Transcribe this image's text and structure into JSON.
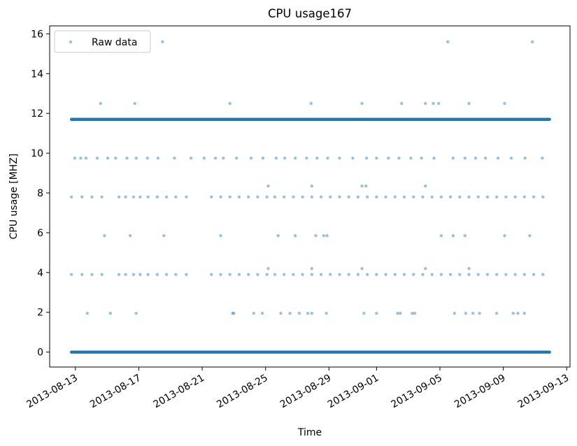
{
  "chart_data": {
    "type": "scatter",
    "title": "CPU usage167",
    "xlabel": "Time",
    "ylabel": "CPU usage [MHZ]",
    "x_axis": {
      "kind": "date",
      "range": [
        "2013-08-11T09:00",
        "2013-09-13T05:00"
      ],
      "ticks": [
        "2013-08-13",
        "2013-08-17",
        "2013-08-21",
        "2013-08-25",
        "2013-08-29",
        "2013-09-01",
        "2013-09-05",
        "2013-09-09",
        "2013-09-13"
      ],
      "tick_label_rotation_deg": 30
    },
    "ylim": [
      -0.75,
      16.4
    ],
    "y_ticks": [
      0,
      2,
      4,
      6,
      8,
      10,
      12,
      14,
      16
    ],
    "grid": false,
    "legend": {
      "placement": "top-left",
      "entries": [
        "Raw data"
      ]
    },
    "series": [
      {
        "name": "Raw data",
        "color": "#1f77b4",
        "marker": "circle",
        "dense_runs": [
          {
            "start": "2013-08-12T18:00",
            "end": "2013-09-11T22:00",
            "y": 0
          },
          {
            "start": "2013-08-12T18:00",
            "end": "2013-09-11T22:00",
            "y": 11.7
          }
        ],
        "sparse_levels": [
          {
            "y": 15.6,
            "dates": [
              "2013-08-18T12:00",
              "2013-09-05T12:00",
              "2013-09-10T20:00"
            ]
          },
          {
            "y": 12.5,
            "dates": [
              "2013-08-14T14:00",
              "2013-08-16T18:00",
              "2013-08-22T18:00",
              "2013-08-27T21:00",
              "2013-08-31T02:00",
              "2013-09-02T14:00",
              "2013-09-04T02:00",
              "2013-09-04T14:00",
              "2013-09-04T22:00",
              "2013-09-06T20:00",
              "2013-09-09T02:00"
            ]
          },
          {
            "y": 9.75,
            "dates": [
              "2013-08-12T23:00",
              "2013-08-13T08:00",
              "2013-08-13T16:00",
              "2013-08-14T09:00",
              "2013-08-15T01:00",
              "2013-08-15T13:00",
              "2013-08-16T06:00",
              "2013-08-16T20:00",
              "2013-08-17T13:00",
              "2013-08-18T05:00",
              "2013-08-19T06:00",
              "2013-08-20T07:00",
              "2013-08-21T03:00",
              "2013-08-21T20:00",
              "2013-08-22T08:00",
              "2013-08-23T04:00",
              "2013-08-24T02:00",
              "2013-08-24T20:00",
              "2013-08-25T16:00",
              "2013-08-26T05:00",
              "2013-08-26T21:00",
              "2013-08-27T14:00",
              "2013-08-28T06:00",
              "2013-08-28T22:00",
              "2013-08-29T16:00",
              "2013-08-30T12:00",
              "2013-08-31T09:00",
              "2013-09-01T00:00",
              "2013-09-01T18:00",
              "2013-09-02T10:00",
              "2013-09-03T04:00",
              "2013-09-03T20:00",
              "2013-09-04T15:00",
              "2013-09-05T20:00",
              "2013-09-06T14:00",
              "2013-09-07T06:00",
              "2013-09-07T21:00",
              "2013-09-08T16:00",
              "2013-09-09T12:00",
              "2013-09-10T09:00",
              "2013-09-11T11:00"
            ]
          },
          {
            "y": 8.35,
            "dates": [
              "2013-08-25T04:00",
              "2013-08-27T22:00",
              "2013-08-31T02:00",
              "2013-08-31T08:00",
              "2013-09-04T02:00"
            ]
          },
          {
            "y": 7.8,
            "dates": [
              "2013-08-12T18:00",
              "2013-08-13T10:00",
              "2013-08-14T01:00",
              "2013-08-14T16:00",
              "2013-08-15T18:00",
              "2013-08-16T04:00",
              "2013-08-16T16:00",
              "2013-08-17T02:00",
              "2013-08-17T14:00",
              "2013-08-18T04:00",
              "2013-08-18T18:00",
              "2013-08-19T08:00",
              "2013-08-20T00:00",
              "2013-08-21T14:00",
              "2013-08-22T04:00",
              "2013-08-22T18:00",
              "2013-08-23T08:00",
              "2013-08-23T22:00",
              "2013-08-24T12:00",
              "2013-08-25T02:00",
              "2013-08-25T14:00",
              "2013-08-26T04:00",
              "2013-08-26T18:00",
              "2013-08-27T08:00",
              "2013-08-27T22:00",
              "2013-08-28T12:00",
              "2013-08-29T02:00",
              "2013-08-29T16:00",
              "2013-08-30T06:00",
              "2013-08-30T20:00",
              "2013-08-31T10:00",
              "2013-09-01T00:00",
              "2013-09-01T14:00",
              "2013-09-02T04:00",
              "2013-09-02T18:00",
              "2013-09-03T08:00",
              "2013-09-03T22:00",
              "2013-09-04T12:00",
              "2013-09-05T02:00",
              "2013-09-05T16:00",
              "2013-09-06T06:00",
              "2013-09-06T20:00",
              "2013-09-07T10:00",
              "2013-09-08T00:00",
              "2013-09-08T14:00",
              "2013-09-09T04:00",
              "2013-09-09T18:00",
              "2013-09-10T08:00",
              "2013-09-10T22:00",
              "2013-09-11T12:00"
            ]
          },
          {
            "y": 5.85,
            "dates": [
              "2013-08-14T20:00",
              "2013-08-16T11:00",
              "2013-08-18T14:00",
              "2013-08-22T04:00",
              "2013-08-25T19:00",
              "2013-08-26T21:00",
              "2013-08-28T04:00",
              "2013-08-28T16:00",
              "2013-08-28T21:00",
              "2013-09-05T02:00",
              "2013-09-05T20:00",
              "2013-09-06T14:00",
              "2013-09-09T02:00",
              "2013-09-10T16:00"
            ]
          },
          {
            "y": 4.2,
            "dates": [
              "2013-08-25T04:00",
              "2013-08-27T22:00",
              "2013-08-31T02:00",
              "2013-09-04T02:00",
              "2013-09-06T20:00"
            ]
          },
          {
            "y": 3.9,
            "dates": [
              "2013-08-12T18:00",
              "2013-08-13T10:00",
              "2013-08-14T01:00",
              "2013-08-14T16:00",
              "2013-08-15T18:00",
              "2013-08-16T04:00",
              "2013-08-16T16:00",
              "2013-08-17T02:00",
              "2013-08-17T14:00",
              "2013-08-18T04:00",
              "2013-08-18T18:00",
              "2013-08-19T08:00",
              "2013-08-20T00:00",
              "2013-08-21T14:00",
              "2013-08-22T04:00",
              "2013-08-22T18:00",
              "2013-08-23T08:00",
              "2013-08-23T22:00",
              "2013-08-24T12:00",
              "2013-08-25T02:00",
              "2013-08-25T14:00",
              "2013-08-26T04:00",
              "2013-08-26T18:00",
              "2013-08-27T08:00",
              "2013-08-27T22:00",
              "2013-08-28T12:00",
              "2013-08-29T02:00",
              "2013-08-29T16:00",
              "2013-08-30T06:00",
              "2013-08-30T20:00",
              "2013-08-31T10:00",
              "2013-09-01T00:00",
              "2013-09-01T14:00",
              "2013-09-02T04:00",
              "2013-09-02T18:00",
              "2013-09-03T08:00",
              "2013-09-03T22:00",
              "2013-09-04T12:00",
              "2013-09-05T02:00",
              "2013-09-05T16:00",
              "2013-09-06T06:00",
              "2013-09-06T20:00",
              "2013-09-07T10:00",
              "2013-09-08T00:00",
              "2013-09-08T14:00",
              "2013-09-09T04:00",
              "2013-09-09T18:00",
              "2013-09-10T08:00",
              "2013-09-10T22:00",
              "2013-09-11T12:00"
            ]
          },
          {
            "y": 1.95,
            "dates": [
              "2013-08-13T18:00",
              "2013-08-15T05:00",
              "2013-08-16T20:00",
              "2013-08-22T22:00",
              "2013-08-23T00:00",
              "2013-08-24T06:00",
              "2013-08-24T19:00",
              "2013-08-25T23:00",
              "2013-08-26T13:00",
              "2013-08-27T03:00",
              "2013-08-27T16:00",
              "2013-08-27T22:00",
              "2013-08-28T20:00",
              "2013-08-31T05:00",
              "2013-09-01T00:00",
              "2013-09-02T08:00",
              "2013-09-02T12:00",
              "2013-09-03T06:00",
              "2013-09-03T10:00",
              "2013-09-05T22:00",
              "2013-09-06T15:00",
              "2013-09-07T02:00",
              "2013-09-07T12:00",
              "2013-09-08T14:00",
              "2013-09-09T15:00",
              "2013-09-09T22:00",
              "2013-09-10T08:00"
            ]
          }
        ]
      }
    ]
  }
}
